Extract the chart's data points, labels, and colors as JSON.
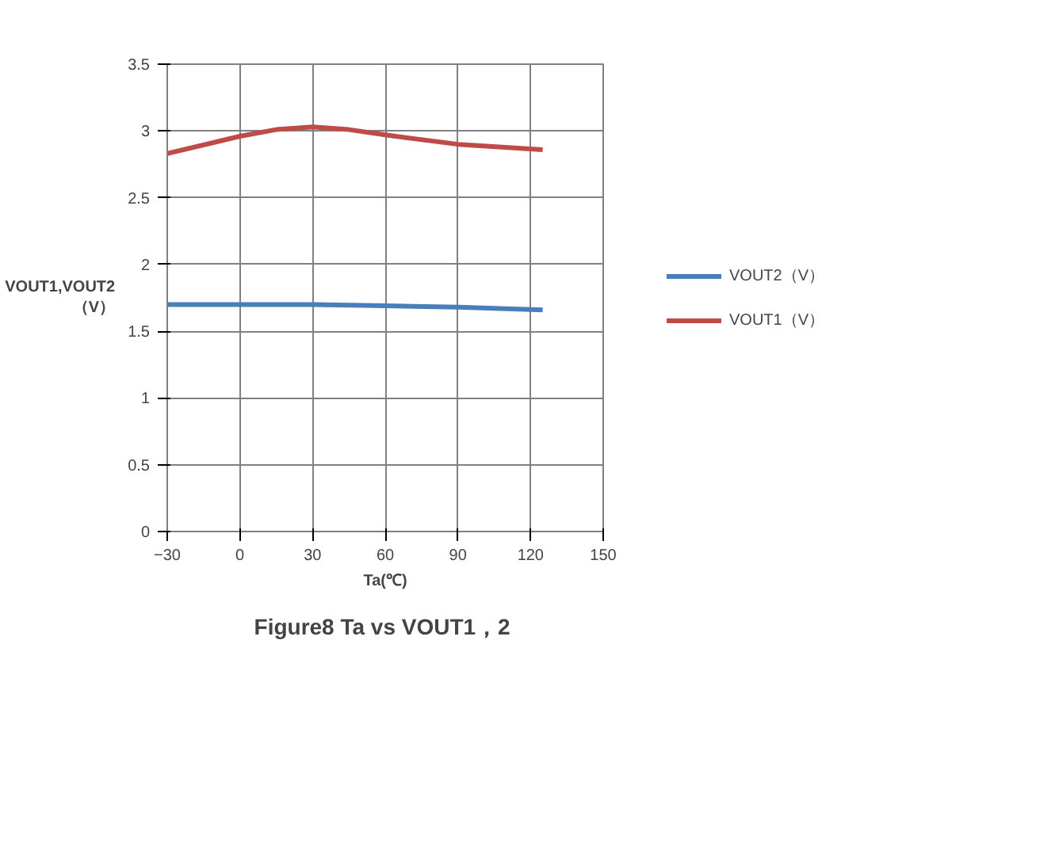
{
  "chart_data": {
    "type": "line",
    "title": "Figure8  Ta vs VOUT1，2",
    "xlabel": "Ta(℃)",
    "ylabel": "VOUT1,VOUT2\n（V）",
    "xlim": [
      -30,
      150
    ],
    "xticks": [
      -30,
      0,
      30,
      60,
      90,
      120,
      150
    ],
    "ylim": [
      0,
      3.5
    ],
    "yticks": [
      0,
      0.5,
      1,
      1.5,
      2,
      2.5,
      3,
      3.5
    ],
    "grid": true,
    "legend": "right",
    "marker": "none",
    "line_style": "solid",
    "series": [
      {
        "name": "VOUT2（V）",
        "color": "#4a7ebb",
        "x": [
          -30,
          0,
          30,
          60,
          90,
          125
        ],
        "values": [
          1.7,
          1.7,
          1.7,
          1.69,
          1.68,
          1.66
        ]
      },
      {
        "name": "VOUT1（V）",
        "color": "#be4b48",
        "x": [
          -30,
          0,
          15,
          30,
          45,
          60,
          90,
          125
        ],
        "values": [
          2.83,
          2.96,
          3.01,
          3.03,
          3.01,
          2.97,
          2.9,
          2.86
        ]
      }
    ]
  }
}
